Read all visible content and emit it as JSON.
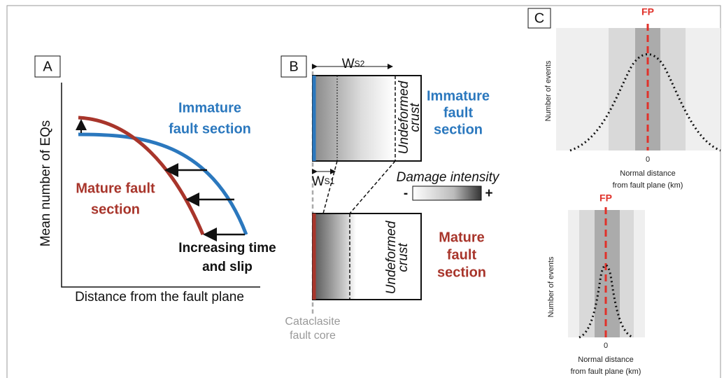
{
  "panel_a": {
    "label": "A",
    "y_axis": "Mean number of EQs",
    "x_axis": "Distance from the fault plane",
    "immature": [
      "Immature",
      "fault section"
    ],
    "mature": [
      "Mature fault",
      "section"
    ],
    "arrow_note": [
      "Increasing time",
      "and slip"
    ]
  },
  "panel_b": {
    "label": "B",
    "ws2": {
      "letter": "W",
      "sub": "S2"
    },
    "ws1": {
      "letter": "W",
      "sub": "S1"
    },
    "immature": [
      "Immature",
      "fault",
      "section"
    ],
    "mature": [
      "Mature",
      "fault",
      "section"
    ],
    "undeformed_top": [
      "Undeformed",
      "crust"
    ],
    "undeformed_bottom": [
      "Undeformed",
      "crust"
    ],
    "damage": {
      "title": "Damage intensity",
      "low": "-",
      "high": "+"
    },
    "core": [
      "Cataclasite",
      "fault core"
    ]
  },
  "panel_c": {
    "label": "C",
    "top": {
      "fp": "FP",
      "y_axis": "Number of events",
      "zero": "0",
      "x_axis": [
        "Normal distance",
        "from fault plane (km)"
      ]
    },
    "bottom": {
      "fp": "FP",
      "y_axis": "Number of events",
      "zero": "0",
      "x_axis": [
        "Normal distance",
        "from fault plane (km)"
      ]
    }
  }
}
